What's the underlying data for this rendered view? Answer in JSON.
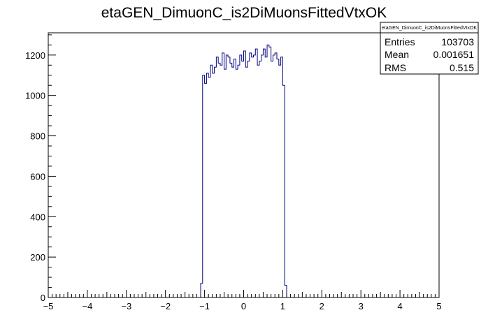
{
  "chart_data": {
    "type": "bar",
    "title": "etaGEN_DimuonC_is2DiMuonsFittedVtxOK",
    "xlabel": "",
    "ylabel": "",
    "xlim": [
      -5,
      5
    ],
    "ylim": [
      0,
      1310
    ],
    "x_ticks": [
      -5,
      -4,
      -3,
      -2,
      -1,
      0,
      1,
      2,
      3,
      4,
      5
    ],
    "x_tick_labels": [
      "−5",
      "−4",
      "−3",
      "−2",
      "−1",
      "0",
      "1",
      "2",
      "3",
      "4",
      "5"
    ],
    "y_ticks": [
      0,
      200,
      400,
      600,
      800,
      1000,
      1200
    ],
    "y_tick_labels": [
      "0",
      "200",
      "400",
      "600",
      "800",
      "1000",
      "1200"
    ],
    "bin_low_edge": -5,
    "bin_width": 0.05,
    "values": [
      0,
      0,
      0,
      0,
      0,
      0,
      0,
      0,
      0,
      0,
      0,
      0,
      0,
      0,
      0,
      0,
      0,
      0,
      0,
      0,
      0,
      0,
      0,
      0,
      0,
      0,
      0,
      0,
      0,
      0,
      0,
      0,
      0,
      0,
      0,
      0,
      0,
      0,
      0,
      0,
      0,
      0,
      0,
      0,
      0,
      0,
      0,
      0,
      0,
      0,
      0,
      0,
      0,
      0,
      0,
      0,
      0,
      0,
      0,
      0,
      0,
      0,
      0,
      0,
      0,
      0,
      0,
      0,
      0,
      0,
      0,
      0,
      0,
      0,
      0,
      0,
      0,
      0,
      70,
      1100,
      1060,
      1110,
      1090,
      1150,
      1110,
      1140,
      1190,
      1160,
      1150,
      1210,
      1130,
      1200,
      1190,
      1160,
      1140,
      1180,
      1130,
      1150,
      1200,
      1170,
      1220,
      1140,
      1170,
      1210,
      1190,
      1200,
      1230,
      1150,
      1170,
      1200,
      1230,
      1190,
      1250,
      1240,
      1170,
      1200,
      1210,
      1180,
      1150,
      1190,
      1050,
      60,
      0,
      0,
      0,
      0,
      0,
      0,
      0,
      0,
      0,
      0,
      0,
      0,
      0,
      0,
      0,
      0,
      0,
      0,
      0,
      0,
      0,
      0,
      0,
      0,
      0,
      0,
      0,
      0,
      0,
      0,
      0,
      0,
      0,
      0,
      0,
      0,
      0,
      0,
      0,
      0,
      0,
      0,
      0,
      0,
      0,
      0,
      0,
      0,
      0,
      0,
      0,
      0,
      0,
      0,
      0,
      0,
      0,
      0,
      0,
      0,
      0,
      0,
      0,
      0,
      0,
      0,
      0,
      0,
      0,
      0,
      0,
      0,
      0,
      0,
      0,
      0,
      0,
      0
    ],
    "legend": "none",
    "grid": false,
    "line_color": "#000080",
    "stats": {
      "title": "etaGEN_DimuonC_is2DiMuonsFittedVtxOK",
      "rows": [
        {
          "label": "Entries",
          "value": "103703"
        },
        {
          "label": "Mean",
          "value": "0.001651"
        },
        {
          "label": "RMS",
          "value": "0.515"
        }
      ]
    }
  }
}
